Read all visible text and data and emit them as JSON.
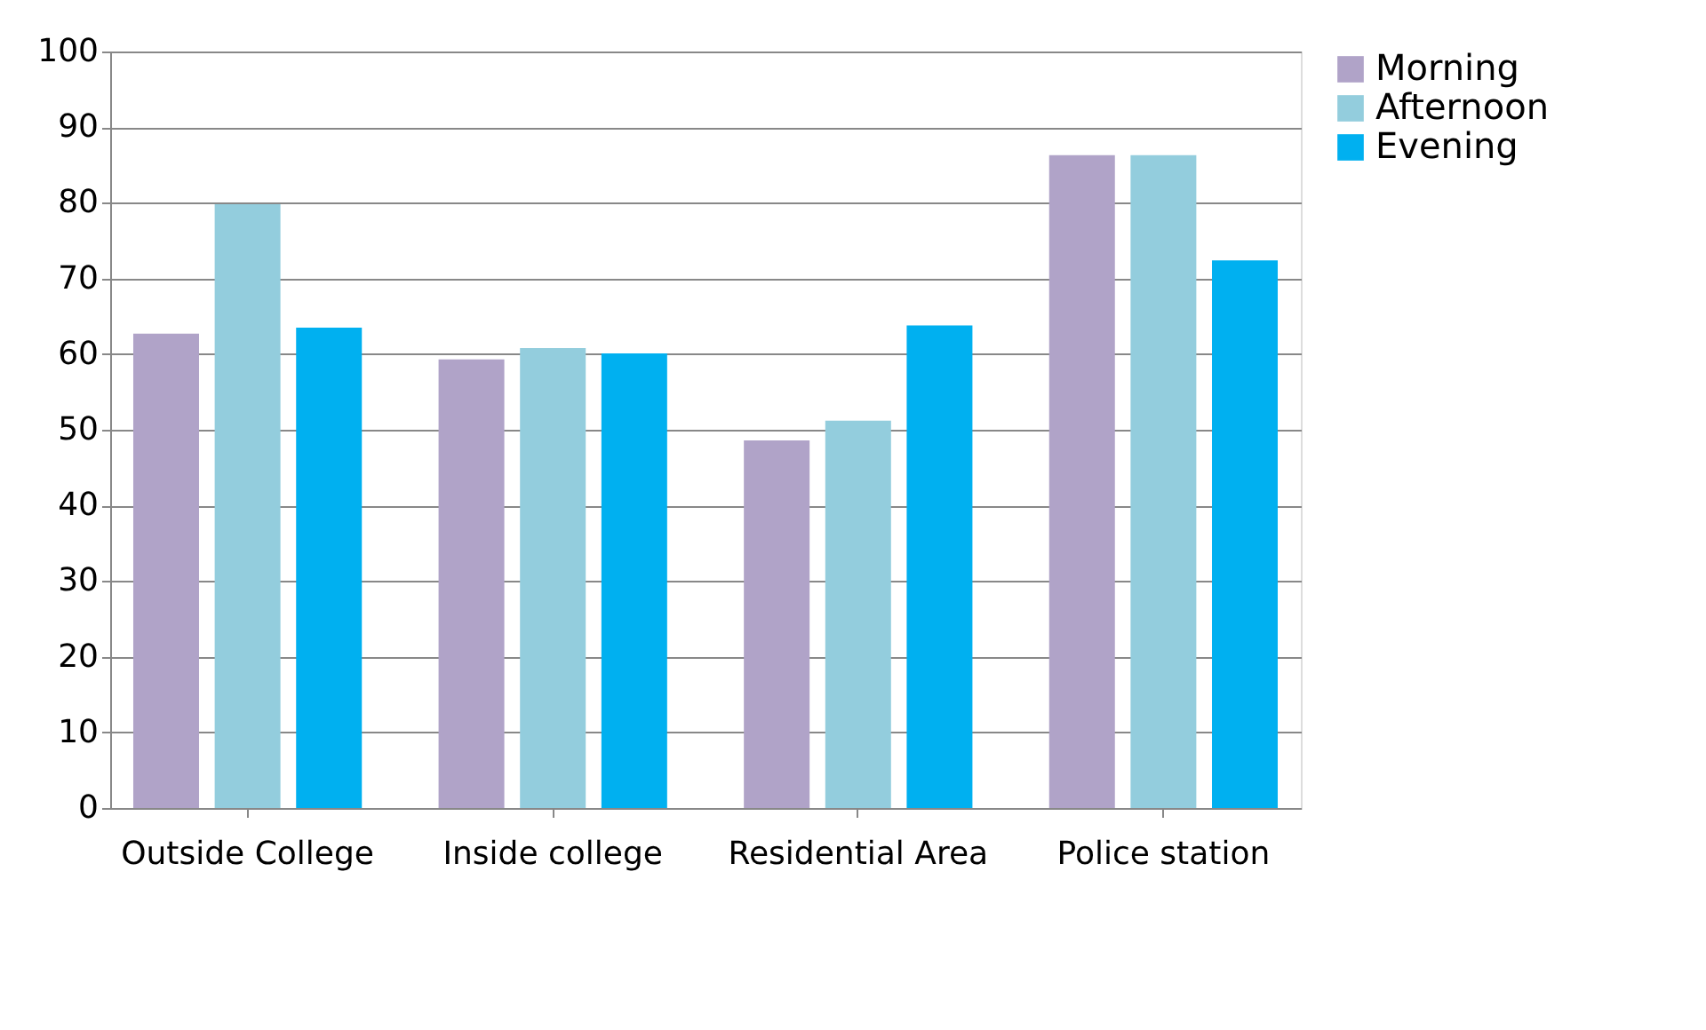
{
  "chart_data": {
    "type": "bar",
    "categories": [
      "Outside College",
      "Inside college",
      "Residential Area",
      "Police station"
    ],
    "series": [
      {
        "name": "Morning",
        "color": "#b0a3c8",
        "values": [
          62.7,
          59.3,
          48.6,
          86.3
        ]
      },
      {
        "name": "Afternoon",
        "color": "#93cddd",
        "values": [
          79.8,
          60.8,
          51.2,
          86.3
        ]
      },
      {
        "name": "Evening",
        "color": "#00b0f0",
        "values": [
          63.5,
          60.1,
          63.8,
          72.4
        ]
      }
    ],
    "ylim": [
      0,
      100
    ],
    "yticks": [
      0,
      10,
      20,
      30,
      40,
      50,
      60,
      70,
      80,
      90,
      100
    ],
    "grid": "y",
    "legend": "right"
  }
}
